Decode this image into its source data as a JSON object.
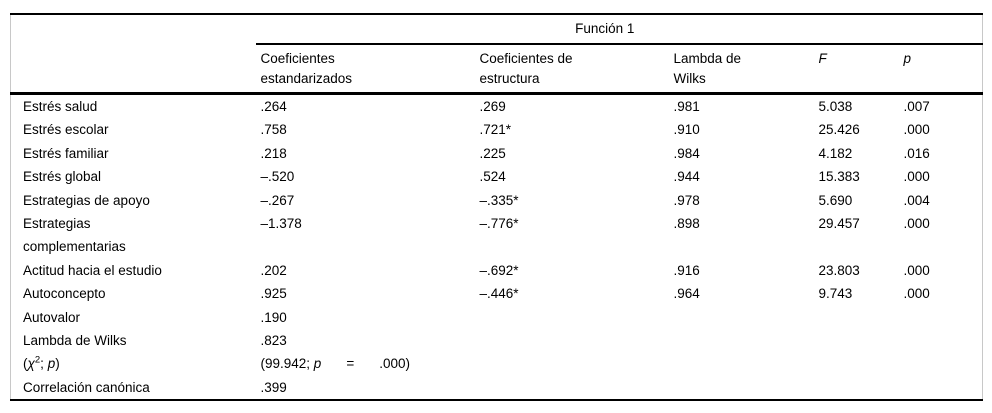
{
  "page": {
    "background_color": "#ffffff",
    "text_color": "#000000",
    "rule_color": "#000000",
    "edge_border_color": "#c8c8c8"
  },
  "table": {
    "span_header": "Función 1",
    "columns": [
      {
        "label": "Coeficientes\nestandarizados"
      },
      {
        "label": "Coeficientes de\nestructura"
      },
      {
        "label": "Lambda de\nWilks"
      },
      {
        "label": "F",
        "italic": true
      },
      {
        "label": "p",
        "italic": true
      }
    ],
    "rows": [
      {
        "label": "Estrés salud",
        "values": [
          ".264",
          ".269",
          ".981",
          "5.038",
          ".007"
        ]
      },
      {
        "label": "Estrés escolar",
        "values": [
          ".758",
          ".721*",
          ".910",
          "25.426",
          ".000"
        ]
      },
      {
        "label": "Estrés familiar",
        "values": [
          ".218",
          ".225",
          ".984",
          "4.182",
          ".016"
        ]
      },
      {
        "label": "Estrés global",
        "values": [
          "–.520",
          ".524",
          ".944",
          "15.383",
          ".000"
        ]
      },
      {
        "label": "Estrategias de apoyo",
        "values": [
          "–.267",
          "–.335*",
          ".978",
          "5.690",
          ".004"
        ]
      },
      {
        "label": "Estrategias\ncomplementarias",
        "values": [
          "–1.378",
          "–.776*",
          ".898",
          "29.457",
          ".000"
        ]
      },
      {
        "label": "Actitud hacia el estudio",
        "values": [
          ".202",
          "–.692*",
          ".916",
          "23.803",
          ".000"
        ]
      },
      {
        "label": "Autoconcepto",
        "values": [
          ".925",
          "–.446*",
          ".964",
          "9.743",
          ".000"
        ]
      },
      {
        "label": "Autovalor",
        "values": [
          ".190",
          "",
          "",
          "",
          ""
        ]
      },
      {
        "label": "Lambda de Wilks",
        "values": [
          ".823",
          "",
          "",
          "",
          ""
        ]
      },
      {
        "label_parts": [
          {
            "t": "("
          },
          {
            "t": "χ",
            "italic": true
          },
          {
            "t": "2",
            "sup": true
          },
          {
            "t": "; "
          },
          {
            "t": "p",
            "italic": true
          },
          {
            "t": ")"
          }
        ],
        "values": [
          "",
          "",
          "",
          "",
          ""
        ],
        "value_parts": [
          {
            "t": "(99.942; "
          },
          {
            "t": "p",
            "italic": true
          },
          {
            "t": "=",
            "spaced": true
          },
          {
            "t": ".000)"
          }
        ]
      },
      {
        "label": "Correlación canónica",
        "values": [
          ".399",
          "",
          "",
          "",
          ""
        ]
      }
    ]
  }
}
